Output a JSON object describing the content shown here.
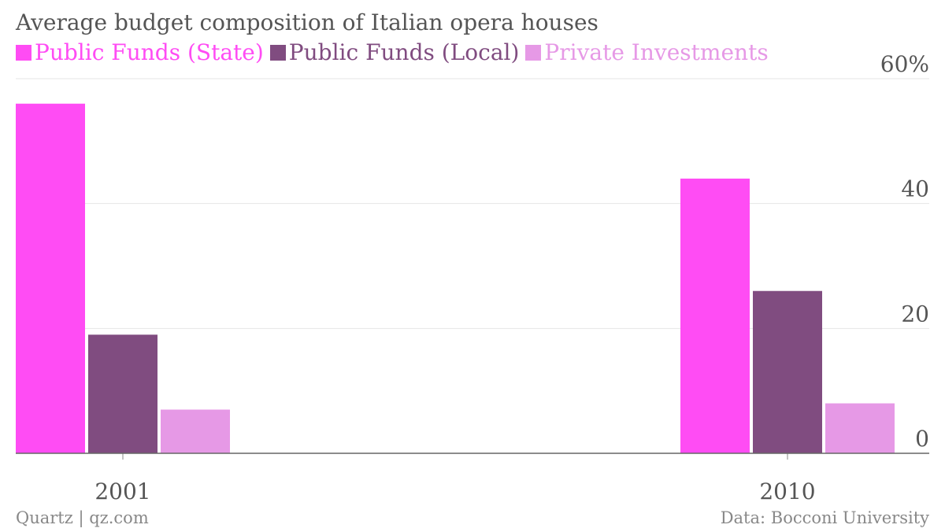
{
  "chart_data": {
    "type": "bar",
    "title": "Average budget composition of Italian opera houses",
    "categories": [
      "2001",
      "2010"
    ],
    "series": [
      {
        "name": "Public Funds (State)",
        "color": "#ff4cf4",
        "values": [
          56,
          44
        ]
      },
      {
        "name": "Public Funds (Local)",
        "color": "#804c80",
        "values": [
          19,
          26
        ]
      },
      {
        "name": "Private Investments",
        "color": "#e699e6",
        "values": [
          7,
          8
        ]
      }
    ],
    "ylim": [
      0,
      60
    ],
    "yticks": [
      {
        "value": 60,
        "label": "60%"
      },
      {
        "value": 40,
        "label": "40"
      },
      {
        "value": 20,
        "label": "20"
      },
      {
        "value": 0,
        "label": "0"
      }
    ],
    "grid": true,
    "legend_position": "top-left",
    "xlabel": "",
    "ylabel": ""
  },
  "footer": {
    "source_left": "Quartz | qz.com",
    "source_right": "Data: Bocconi University"
  }
}
